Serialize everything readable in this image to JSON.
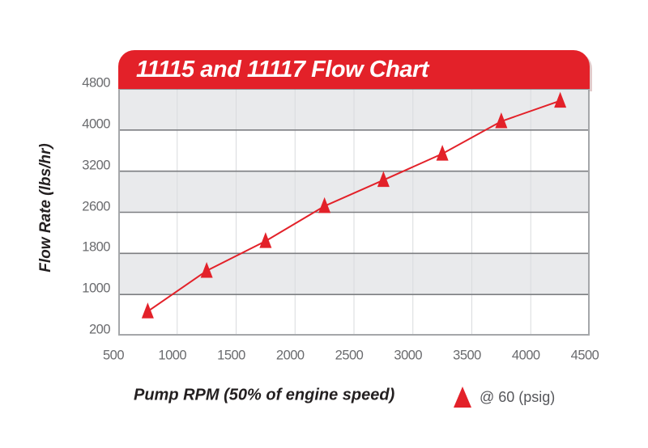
{
  "colors": {
    "accent_red": "#e32129",
    "band_gray": "#e9eaec",
    "grid_major": "#7c7e81",
    "grid_minor": "#d9dbde",
    "plot_border": "#a5a7aa",
    "tick_text": "#6a6b6e",
    "label_text": "#231f20",
    "legend_text": "#56575b",
    "title_text": "#ffffff"
  },
  "chart_data": {
    "type": "line",
    "title": "11115 and 11117 Flow Chart",
    "xlabel": "Pump RPM (50% of engine speed)",
    "ylabel": "Flow Rate (lbs/hr)",
    "x_ticks": [
      500,
      1000,
      1500,
      2000,
      2500,
      3000,
      3500,
      4000,
      4500
    ],
    "y_ticks": [
      200,
      1000,
      1800,
      2600,
      3200,
      4000,
      4800
    ],
    "axis_notes": "y tick labels are evenly spaced on the axis even though values are non-linear; alternating gray/white horizontal bands between gridlines; light vertical gridlines at each x tick",
    "xlim": [
      500,
      4500
    ],
    "grid": true,
    "legend_position": "bottom-right",
    "series": [
      {
        "name": "@ 60 (psig)",
        "marker": "triangle-up",
        "color": "#e32129",
        "x": [
          750,
          1250,
          1750,
          2250,
          2750,
          3250,
          3750,
          4250
        ],
        "y": [
          670,
          1460,
          2040,
          2690,
          3070,
          3540,
          4170,
          4570
        ]
      }
    ]
  }
}
